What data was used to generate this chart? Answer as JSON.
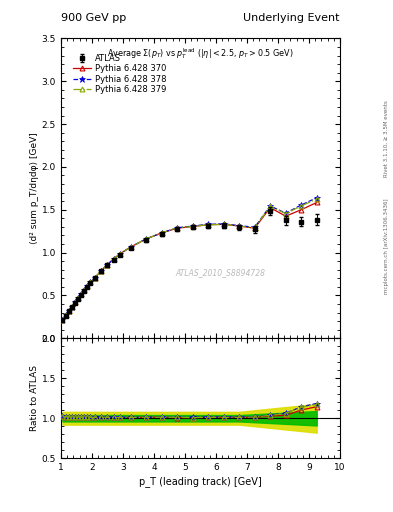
{
  "title_left": "900 GeV pp",
  "title_right": "Underlying Event",
  "right_label": "Rivet 3.1.10, ≥ 3.5M events",
  "right_label2": "mcplots.cern.ch [arXiv:1306.3436]",
  "watermark": "ATLAS_2010_S8894728",
  "ylabel_main": "⟨d² sum p_T/dηdφ⟩ [GeV]",
  "ylabel_ratio": "Ratio to ATLAS",
  "xlabel": "p_T (leading track) [GeV]",
  "ylim_main": [
    0.0,
    3.5
  ],
  "ylim_ratio": [
    0.5,
    2.0
  ],
  "xlim": [
    1.0,
    10.0
  ],
  "yticks_main": [
    0.0,
    0.5,
    1.0,
    1.5,
    2.0,
    2.5,
    3.0,
    3.5
  ],
  "yticks_ratio": [
    0.5,
    1.0,
    1.5,
    2.0
  ],
  "data_x": [
    1.05,
    1.15,
    1.25,
    1.35,
    1.45,
    1.55,
    1.65,
    1.75,
    1.85,
    1.95,
    2.1,
    2.3,
    2.5,
    2.7,
    2.9,
    3.25,
    3.75,
    4.25,
    4.75,
    5.25,
    5.75,
    6.25,
    6.75,
    7.25,
    7.75,
    8.25,
    8.75,
    9.25
  ],
  "data_y": [
    0.21,
    0.265,
    0.315,
    0.365,
    0.415,
    0.462,
    0.51,
    0.555,
    0.6,
    0.645,
    0.7,
    0.78,
    0.85,
    0.915,
    0.975,
    1.055,
    1.145,
    1.215,
    1.275,
    1.295,
    1.31,
    1.315,
    1.295,
    1.27,
    1.485,
    1.375,
    1.36,
    1.385
  ],
  "data_err_lo": [
    0.008,
    0.008,
    0.008,
    0.008,
    0.008,
    0.008,
    0.009,
    0.009,
    0.009,
    0.01,
    0.01,
    0.011,
    0.012,
    0.013,
    0.014,
    0.015,
    0.018,
    0.02,
    0.022,
    0.025,
    0.028,
    0.03,
    0.033,
    0.04,
    0.045,
    0.05,
    0.055,
    0.06
  ],
  "data_err_hi": [
    0.008,
    0.008,
    0.008,
    0.008,
    0.008,
    0.008,
    0.009,
    0.009,
    0.009,
    0.01,
    0.01,
    0.011,
    0.012,
    0.013,
    0.014,
    0.015,
    0.018,
    0.02,
    0.022,
    0.025,
    0.028,
    0.03,
    0.033,
    0.04,
    0.045,
    0.05,
    0.055,
    0.06
  ],
  "py370_y": [
    0.215,
    0.27,
    0.32,
    0.37,
    0.42,
    0.468,
    0.516,
    0.562,
    0.607,
    0.652,
    0.708,
    0.79,
    0.86,
    0.925,
    0.985,
    1.065,
    1.16,
    1.23,
    1.285,
    1.305,
    1.325,
    1.33,
    1.31,
    1.285,
    1.525,
    1.425,
    1.5,
    1.585
  ],
  "py378_y": [
    0.215,
    0.27,
    0.32,
    0.37,
    0.42,
    0.468,
    0.516,
    0.562,
    0.607,
    0.652,
    0.708,
    0.79,
    0.86,
    0.925,
    0.985,
    1.065,
    1.16,
    1.23,
    1.29,
    1.31,
    1.33,
    1.335,
    1.315,
    1.295,
    1.545,
    1.46,
    1.555,
    1.64
  ],
  "py379_y": [
    0.215,
    0.27,
    0.32,
    0.37,
    0.42,
    0.468,
    0.516,
    0.562,
    0.607,
    0.652,
    0.708,
    0.79,
    0.86,
    0.925,
    0.985,
    1.065,
    1.16,
    1.23,
    1.29,
    1.305,
    1.325,
    1.33,
    1.31,
    1.29,
    1.54,
    1.455,
    1.545,
    1.625
  ],
  "band_yerr_lo": [
    0.04,
    0.04,
    0.04,
    0.04,
    0.04,
    0.04,
    0.04,
    0.04,
    0.04,
    0.04,
    0.04,
    0.04,
    0.04,
    0.04,
    0.04,
    0.04,
    0.04,
    0.04,
    0.04,
    0.04,
    0.04,
    0.04,
    0.04,
    0.05,
    0.06,
    0.07,
    0.08,
    0.09
  ],
  "band_yerr_hi": [
    0.08,
    0.08,
    0.08,
    0.08,
    0.08,
    0.08,
    0.08,
    0.08,
    0.08,
    0.08,
    0.08,
    0.08,
    0.08,
    0.08,
    0.08,
    0.08,
    0.08,
    0.08,
    0.08,
    0.08,
    0.08,
    0.08,
    0.08,
    0.1,
    0.12,
    0.14,
    0.16,
    0.18
  ],
  "color_370": "#cc0000",
  "color_378": "#0000dd",
  "color_379": "#88aa00",
  "color_data": "#000000",
  "color_band_green": "#00bb00",
  "color_band_yellow": "#dddd00"
}
